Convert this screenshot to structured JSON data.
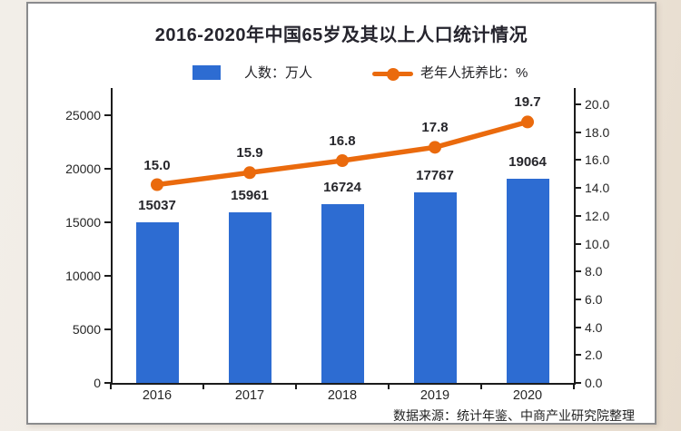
{
  "colors": {
    "bar": "#2d6cd2",
    "line": "#ea6a0d",
    "axis": "#1c1c1c",
    "card_background": "#ffffff",
    "page_background": "#efe9e2"
  },
  "header": {
    "title": "2016-2020年中国65岁及其以上人口统计情况"
  },
  "legend": {
    "bar_label": "人数：万人",
    "line_label": "老年人抚养比：%"
  },
  "footer": {
    "source": "数据来源：统计年鉴、中商产业研究院整理"
  },
  "chart_data": {
    "type": "bar+line",
    "title": "2016-2020年中国65岁及其以上人口统计情况",
    "categories": [
      "2016",
      "2017",
      "2018",
      "2019",
      "2020"
    ],
    "series": [
      {
        "name": "人数：万人",
        "type": "bar",
        "axis": "left",
        "color": "#2d6cd2",
        "values": [
          15037,
          15961,
          16724,
          17767,
          19064
        ],
        "labels": [
          "15037",
          "15961",
          "16724",
          "17767",
          "19064"
        ]
      },
      {
        "name": "老年人抚养比：%",
        "type": "line",
        "axis": "right",
        "color": "#ea6a0d",
        "values": [
          15.0,
          15.9,
          16.8,
          17.8,
          19.7
        ],
        "labels": [
          "15.0",
          "15.9",
          "16.8",
          "17.8",
          "19.7"
        ]
      }
    ],
    "left_axis": {
      "min": 0,
      "max": 25000,
      "tick_labels": [
        "0",
        "5000",
        "10000",
        "15000",
        "20000",
        "25000"
      ]
    },
    "right_axis": {
      "min": 0,
      "max": 20,
      "tick_labels": [
        "0.0",
        "2.0",
        "4.0",
        "6.0",
        "8.0",
        "10.0",
        "12.0",
        "14.0",
        "16.0",
        "18.0",
        "20.0"
      ]
    },
    "grid": false,
    "legend_position": "top",
    "source": "数据来源：统计年鉴、中商产业研究院整理"
  }
}
